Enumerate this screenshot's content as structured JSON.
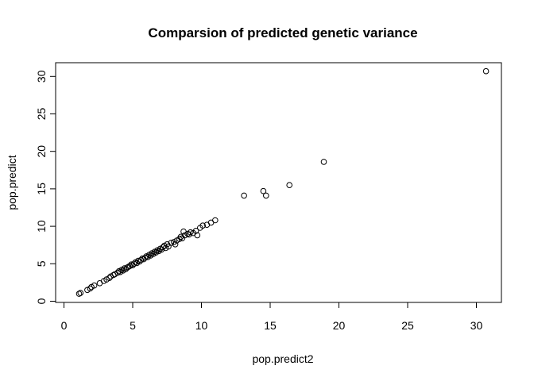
{
  "chart_data": {
    "type": "scatter",
    "title": "Comparsion of predicted genetic variance",
    "xlabel": "pop.predict2",
    "ylabel": "pop.predict",
    "xlim": [
      0,
      32
    ],
    "ylim": [
      0,
      32
    ],
    "xticks": [
      "0",
      "5",
      "10",
      "15",
      "20",
      "25",
      "30"
    ],
    "yticks": [
      "0",
      "5",
      "10",
      "15",
      "20",
      "25",
      "30"
    ],
    "xtick_values": [
      0,
      5,
      10,
      15,
      20,
      25,
      30
    ],
    "ytick_values": [
      0,
      5,
      10,
      15,
      20,
      25,
      30
    ],
    "grid": false,
    "marker": "open-circle",
    "points": [
      [
        1.1,
        1.0
      ],
      [
        1.2,
        1.1
      ],
      [
        1.7,
        1.5
      ],
      [
        1.9,
        1.7
      ],
      [
        2.0,
        1.9
      ],
      [
        2.2,
        2.1
      ],
      [
        2.6,
        2.4
      ],
      [
        2.9,
        2.7
      ],
      [
        3.1,
        2.9
      ],
      [
        3.3,
        3.1
      ],
      [
        3.4,
        3.3
      ],
      [
        3.6,
        3.5
      ],
      [
        3.7,
        3.6
      ],
      [
        3.9,
        3.8
      ],
      [
        4.0,
        4.0
      ],
      [
        4.1,
        3.9
      ],
      [
        4.2,
        4.2
      ],
      [
        4.3,
        4.1
      ],
      [
        4.4,
        4.4
      ],
      [
        4.5,
        4.3
      ],
      [
        4.6,
        4.5
      ],
      [
        4.7,
        4.6
      ],
      [
        4.8,
        4.7
      ],
      [
        4.9,
        4.9
      ],
      [
        5.0,
        4.8
      ],
      [
        5.1,
        5.0
      ],
      [
        5.2,
        5.2
      ],
      [
        5.3,
        5.1
      ],
      [
        5.4,
        5.4
      ],
      [
        5.5,
        5.3
      ],
      [
        5.6,
        5.5
      ],
      [
        5.7,
        5.7
      ],
      [
        5.8,
        5.6
      ],
      [
        5.9,
        5.8
      ],
      [
        6.0,
        6.0
      ],
      [
        6.1,
        5.9
      ],
      [
        6.2,
        6.2
      ],
      [
        6.3,
        6.1
      ],
      [
        6.4,
        6.4
      ],
      [
        6.5,
        6.3
      ],
      [
        6.6,
        6.6
      ],
      [
        6.7,
        6.5
      ],
      [
        6.8,
        6.8
      ],
      [
        6.9,
        6.7
      ],
      [
        7.0,
        7.0
      ],
      [
        7.1,
        6.9
      ],
      [
        7.2,
        7.2
      ],
      [
        7.3,
        7.4
      ],
      [
        7.4,
        7.1
      ],
      [
        7.5,
        7.6
      ],
      [
        7.6,
        7.3
      ],
      [
        7.8,
        7.8
      ],
      [
        8.0,
        7.9
      ],
      [
        8.1,
        7.6
      ],
      [
        8.2,
        8.1
      ],
      [
        8.4,
        8.3
      ],
      [
        8.5,
        8.6
      ],
      [
        8.6,
        8.4
      ],
      [
        8.7,
        9.3
      ],
      [
        8.8,
        8.8
      ],
      [
        9.0,
        9.0
      ],
      [
        9.1,
        8.9
      ],
      [
        9.2,
        9.2
      ],
      [
        9.4,
        9.1
      ],
      [
        9.6,
        9.4
      ],
      [
        9.7,
        8.8
      ],
      [
        9.9,
        9.8
      ],
      [
        10.1,
        10.1
      ],
      [
        10.4,
        10.2
      ],
      [
        10.7,
        10.5
      ],
      [
        11.0,
        10.8
      ],
      [
        13.1,
        14.1
      ],
      [
        14.5,
        14.7
      ],
      [
        14.7,
        14.1
      ],
      [
        16.4,
        15.5
      ],
      [
        18.9,
        18.6
      ],
      [
        30.7,
        30.7
      ]
    ]
  }
}
